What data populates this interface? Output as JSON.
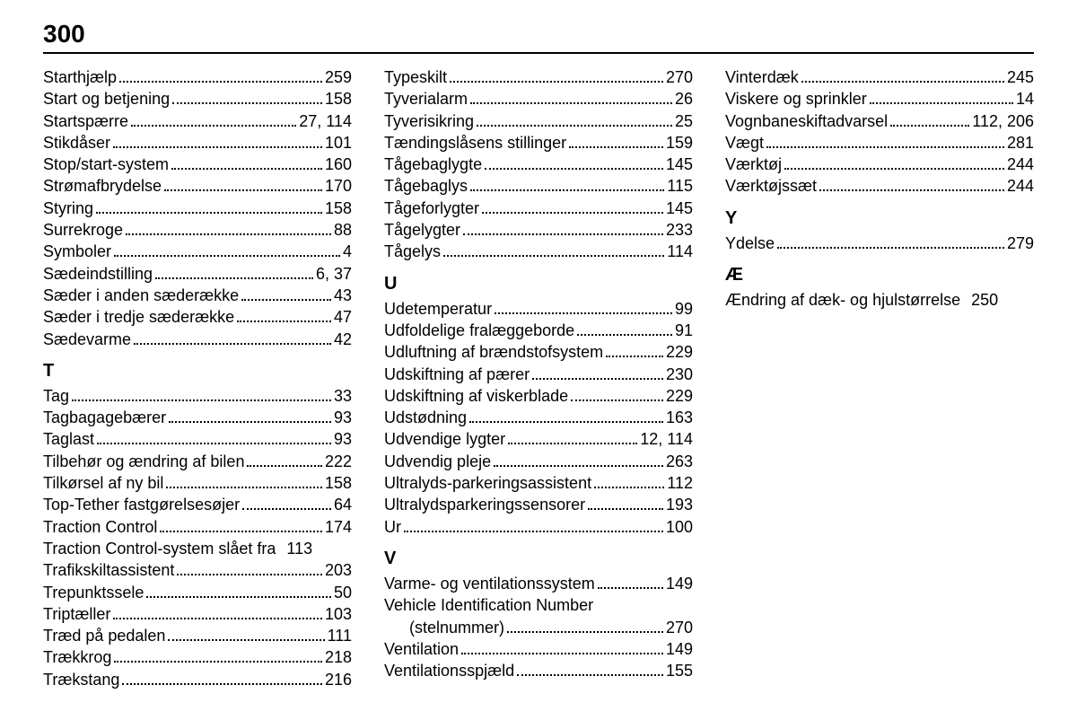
{
  "page_number": "300",
  "columns": [
    [
      {
        "type": "entry",
        "term": "Starthjælp",
        "page": "259"
      },
      {
        "type": "entry",
        "term": "Start og betjening",
        "page": "158"
      },
      {
        "type": "entry",
        "term": "Startspærre",
        "page": "27, 114"
      },
      {
        "type": "entry",
        "term": "Stikdåser",
        "page": "101"
      },
      {
        "type": "entry",
        "term": "Stop/start-system",
        "page": "160"
      },
      {
        "type": "entry",
        "term": "Strømafbrydelse",
        "page": "170"
      },
      {
        "type": "entry",
        "term": "Styring",
        "page": "158"
      },
      {
        "type": "entry",
        "term": "Surrekroge",
        "page": "88"
      },
      {
        "type": "entry",
        "term": "Symboler",
        "page": "4"
      },
      {
        "type": "entry",
        "term": "Sædeindstilling",
        "page": "6, 37"
      },
      {
        "type": "entry",
        "term": "Sæder i anden sæderække",
        "page": "43"
      },
      {
        "type": "entry",
        "term": "Sæder i tredje sæderække",
        "page": "47"
      },
      {
        "type": "entry",
        "term": "Sædevarme",
        "page": "42"
      },
      {
        "type": "head",
        "label": "T"
      },
      {
        "type": "entry",
        "term": "Tag",
        "page": "33"
      },
      {
        "type": "entry",
        "term": "Tagbagagebærer",
        "page": "93"
      },
      {
        "type": "entry",
        "term": "Taglast",
        "page": "93"
      },
      {
        "type": "entry",
        "term": "Tilbehør og ændring af bilen",
        "page": "222"
      },
      {
        "type": "entry",
        "term": "Tilkørsel af ny bil",
        "page": "158"
      },
      {
        "type": "entry",
        "term": "Top-Tether fastgørelsesøjer",
        "page": "64"
      },
      {
        "type": "entry",
        "term": "Traction Control",
        "page": "174"
      },
      {
        "type": "entry",
        "term": "Traction Control-system slået fra",
        "page": "113",
        "tight": true
      },
      {
        "type": "entry",
        "term": "Trafikskiltassistent",
        "page": "203"
      },
      {
        "type": "entry",
        "term": "Trepunktssele",
        "page": "50"
      },
      {
        "type": "entry",
        "term": "Triptæller",
        "page": "103"
      },
      {
        "type": "entry",
        "term": "Træd på pedalen",
        "page": "111"
      },
      {
        "type": "entry",
        "term": "Trækkrog",
        "page": "218"
      },
      {
        "type": "entry",
        "term": "Trækstang",
        "page": "216"
      },
      {
        "type": "entry",
        "term": "Typeskilt",
        "page": "270"
      }
    ],
    [
      {
        "type": "entry",
        "term": "Tyverialarm",
        "page": "26"
      },
      {
        "type": "entry",
        "term": "Tyverisikring",
        "page": "25"
      },
      {
        "type": "entry",
        "term": "Tændingslåsens stillinger",
        "page": "159"
      },
      {
        "type": "entry",
        "term": "Tågebaglygte",
        "page": "145"
      },
      {
        "type": "entry",
        "term": "Tågebaglys",
        "page": "115"
      },
      {
        "type": "entry",
        "term": "Tågeforlygter",
        "page": "145"
      },
      {
        "type": "entry",
        "term": "Tågelygter",
        "page": "233"
      },
      {
        "type": "entry",
        "term": "Tågelys",
        "page": "114"
      },
      {
        "type": "head",
        "label": "U"
      },
      {
        "type": "entry",
        "term": "Udetemperatur",
        "page": "99"
      },
      {
        "type": "entry",
        "term": "Udfoldelige fralæggeborde",
        "page": "91"
      },
      {
        "type": "entry",
        "term": "Udluftning af brændstofsystem",
        "page": "229"
      },
      {
        "type": "entry",
        "term": "Udskiftning af pærer",
        "page": "230"
      },
      {
        "type": "entry",
        "term": "Udskiftning af viskerblade",
        "page": "229"
      },
      {
        "type": "entry",
        "term": "Udstødning",
        "page": "163"
      },
      {
        "type": "entry",
        "term": "Udvendige lygter",
        "page": "12, 114"
      },
      {
        "type": "entry",
        "term": "Udvendig pleje",
        "page": "263"
      },
      {
        "type": "entry",
        "term": "Ultralyds-parkeringsassistent",
        "page": "112"
      },
      {
        "type": "entry",
        "term": "Ultralydsparkeringssensorer",
        "page": "193"
      },
      {
        "type": "entry",
        "term": "Ur",
        "page": "100"
      },
      {
        "type": "head",
        "label": "V"
      },
      {
        "type": "entry",
        "term": "Varme- og ventilationssystem",
        "page": "149"
      },
      {
        "type": "multiline",
        "line1": "Vehicle Identification Number",
        "line2": "(stelnummer)",
        "page": "270"
      },
      {
        "type": "entry",
        "term": "Ventilation",
        "page": "149"
      },
      {
        "type": "entry",
        "term": "Ventilationsspjæld",
        "page": "155"
      },
      {
        "type": "entry",
        "term": "Vinterdæk",
        "page": "245"
      },
      {
        "type": "entry",
        "term": "Viskere og sprinkler",
        "page": "14"
      },
      {
        "type": "entry",
        "term": "Vognbaneskiftadvarsel",
        "page": "112, 206"
      }
    ],
    [
      {
        "type": "entry",
        "term": "Vægt",
        "page": "281"
      },
      {
        "type": "entry",
        "term": "Værktøj",
        "page": "244"
      },
      {
        "type": "entry",
        "term": "Værktøjssæt",
        "page": "244"
      },
      {
        "type": "head",
        "label": "Y"
      },
      {
        "type": "entry",
        "term": "Ydelse",
        "page": "279"
      },
      {
        "type": "head",
        "label": "Æ"
      },
      {
        "type": "entry",
        "term": "Ændring af dæk- og hjulstørrelse",
        "page": "250",
        "tight": true
      }
    ]
  ]
}
